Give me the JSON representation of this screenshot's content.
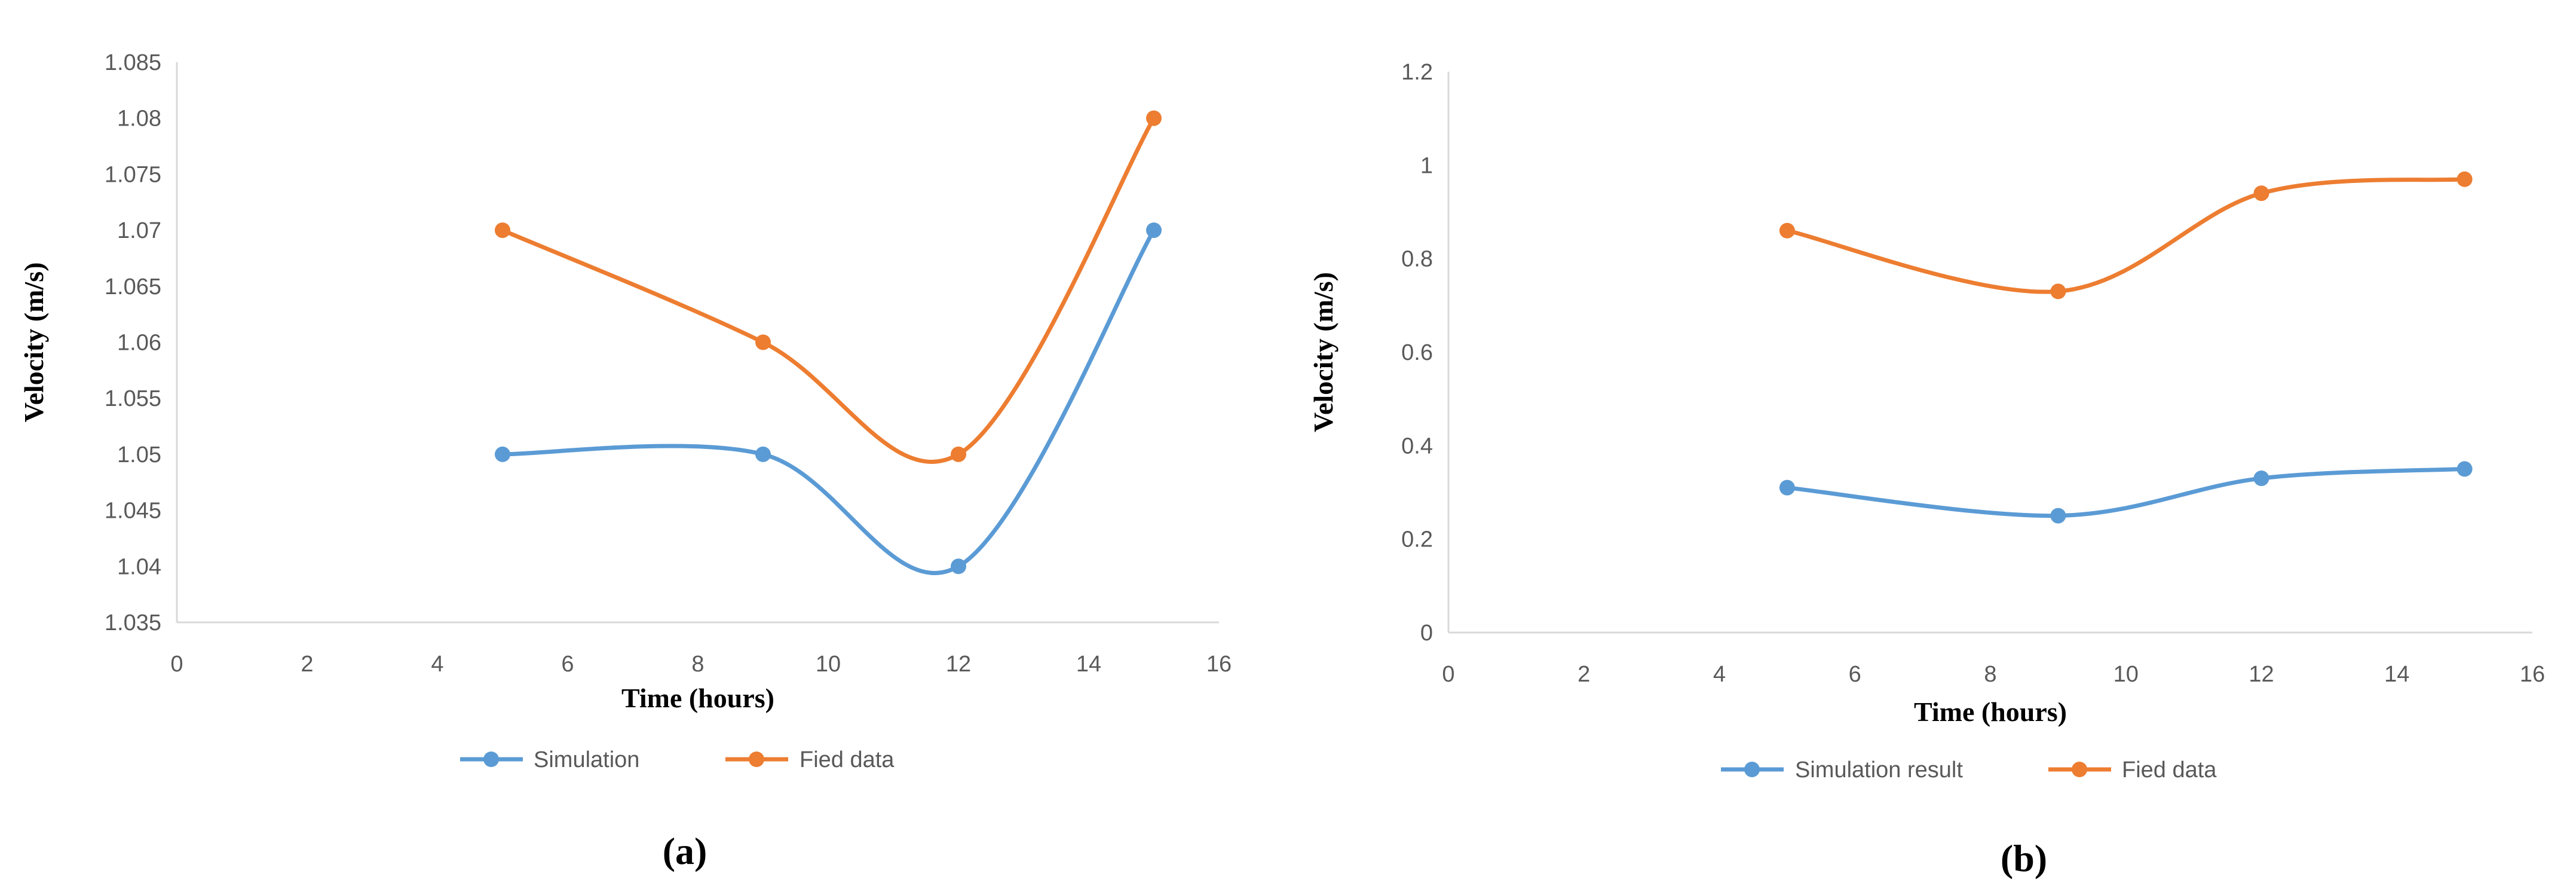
{
  "chart_data": [
    {
      "panel_label": "(a)",
      "type": "line",
      "xlabel": "Time (hours)",
      "ylabel": "Velocity (m/s)",
      "xlim": [
        0,
        16
      ],
      "ylim": [
        1.035,
        1.085
      ],
      "xticks": [
        "0",
        "2",
        "4",
        "6",
        "8",
        "10",
        "12",
        "14",
        "16"
      ],
      "yticks": [
        "1.035",
        "1.04",
        "1.045",
        "1.05",
        "1.055",
        "1.06",
        "1.065",
        "1.07",
        "1.075",
        "1.08",
        "1.085"
      ],
      "grid": false,
      "smooth": true,
      "legend_position": "bottom",
      "series": [
        {
          "name": "Simulation",
          "color": "#5b9bd5",
          "x": [
            5,
            9,
            12,
            15
          ],
          "values": [
            1.05,
            1.05,
            1.04,
            1.07
          ]
        },
        {
          "name": "Fied data",
          "color": "#ed7d31",
          "x": [
            5,
            9,
            12,
            15
          ],
          "values": [
            1.07,
            1.06,
            1.05,
            1.08
          ]
        }
      ]
    },
    {
      "panel_label": "(b)",
      "type": "line",
      "xlabel": "Time (hours)",
      "ylabel": "Velocity (m/s)",
      "xlim": [
        0,
        16
      ],
      "ylim": [
        0,
        1.2
      ],
      "xticks": [
        "0",
        "2",
        "4",
        "6",
        "8",
        "10",
        "12",
        "14",
        "16"
      ],
      "yticks": [
        "0",
        "0.2",
        "0.4",
        "0.6",
        "0.8",
        "1",
        "1.2"
      ],
      "grid": false,
      "smooth": true,
      "legend_position": "bottom",
      "series": [
        {
          "name": "Simulation result",
          "color": "#5b9bd5",
          "x": [
            5,
            9,
            12,
            15
          ],
          "values": [
            0.31,
            0.25,
            0.33,
            0.35
          ]
        },
        {
          "name": "Fied data",
          "color": "#ed7d31",
          "x": [
            5,
            9,
            12,
            15
          ],
          "values": [
            0.86,
            0.73,
            0.94,
            0.97
          ]
        }
      ]
    }
  ]
}
